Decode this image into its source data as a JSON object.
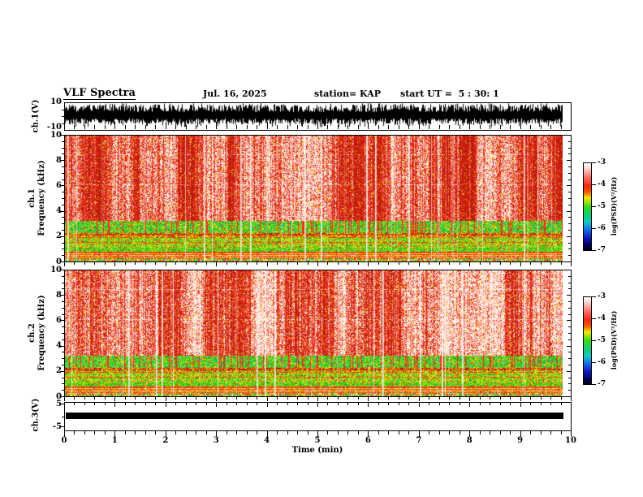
{
  "header": {
    "title": "VLF Spectra",
    "date": "Jul. 16, 2025",
    "station": "station= KAP",
    "start_ut": "start UT =  5 : 30: 1"
  },
  "xaxis": {
    "label": "Time (min)",
    "tick_labels": [
      "0",
      "1",
      "2",
      "3",
      "4",
      "5",
      "6",
      "7",
      "8",
      "9",
      "10"
    ],
    "range": [
      0,
      10
    ]
  },
  "panels": {
    "wave": {
      "name": "ch.1(V)",
      "ytop": "10",
      "ybottom": "-10"
    },
    "spec1": {
      "channel": "ch.1",
      "ylabel": "Frequency (kHz)",
      "ytick_labels": [
        "10",
        "8",
        "6",
        "4",
        "2",
        "0"
      ]
    },
    "spec2": {
      "channel": "ch.2",
      "ylabel": "Frequency (kHz)",
      "ytick_labels": [
        "10",
        "8",
        "6",
        "4",
        "2",
        "0"
      ]
    },
    "ch3": {
      "name": "ch.3(V)",
      "ytop": "5",
      "ybottom": "-5"
    }
  },
  "colorbar": {
    "label": "log(PSD)(V²/Hz)",
    "tick_labels": [
      "-3",
      "-4",
      "-5",
      "-6",
      "-7"
    ],
    "range": [
      -7,
      -3
    ],
    "gradient": [
      [
        0,
        "#ffffff"
      ],
      [
        0.06,
        "#ffd2d2"
      ],
      [
        0.16,
        "#ff7468"
      ],
      [
        0.26,
        "#f62818"
      ],
      [
        0.33,
        "#f05800"
      ],
      [
        0.4,
        "#f0e600"
      ],
      [
        0.5,
        "#3cd81c"
      ],
      [
        0.6,
        "#14cc78"
      ],
      [
        0.68,
        "#16c8c0"
      ],
      [
        0.76,
        "#1670e8"
      ],
      [
        0.86,
        "#1018b4"
      ],
      [
        0.94,
        "#000060"
      ],
      [
        1,
        "#000010"
      ]
    ]
  },
  "spectrogram_palette": {
    "dark_red": "#b91a0c",
    "red": "#f23019",
    "orange": "#f08c00",
    "yellow": "#f0e600",
    "yellow_green": "#a8dc1e",
    "green": "#2cc81e",
    "cyan": "#14c8a0",
    "white_hot": "#ffefe8",
    "pale": "#faf8d8",
    "trace": "#000000"
  },
  "chart_data": [
    {
      "type": "line",
      "panel": "ch.1(V) waveform",
      "xlabel": "Time (min)",
      "xlim": [
        0,
        10
      ],
      "ylabel": "ch.1(V)",
      "ylim": [
        -10,
        10
      ],
      "yticks": [
        10,
        -10
      ],
      "description": "Dense black broadband noise waveform spanning roughly -8 to +10 V continuously for the full 10 minutes"
    },
    {
      "type": "heatmap",
      "panel": "ch.1 spectrogram",
      "xlabel": "Time (min)",
      "xlim": [
        0,
        10
      ],
      "ylabel": "Frequency (kHz)",
      "ylim": [
        0,
        10
      ],
      "yticks": [
        0,
        2,
        4,
        6,
        8,
        10
      ],
      "colorbar_label": "log(PSD)(V²/Hz)",
      "colorbar_range": [
        -7,
        -3
      ],
      "description": "High PSD (red, ~ -3.5 to -4) above ~3 kHz with fine vertical striations and bright white streaks; speckled green band (~ -5) at 2.3-3.2 kHz; green/yellow layered band 1-2 kHz; thin red horizontal lines near 2.2, 1.9, 1.5 kHz; yellow/white/red horizontal stripes below 0.8 kHz; data ends near 9.85 min"
    },
    {
      "type": "heatmap",
      "panel": "ch.2 spectrogram",
      "xlabel": "Time (min)",
      "xlim": [
        0,
        10
      ],
      "ylabel": "Frequency (kHz)",
      "ylim": [
        0,
        10
      ],
      "yticks": [
        0,
        2,
        4,
        6,
        8,
        10
      ],
      "colorbar_label": "log(PSD)(V²/Hz)",
      "colorbar_range": [
        -7,
        -3
      ],
      "description": "Same banded structure as ch.1 but noticeably brighter/whiter (higher PSD) above ~4 kHz"
    },
    {
      "type": "line",
      "panel": "ch.3(V)",
      "xlabel": "Time (min)",
      "xlim": [
        0,
        10
      ],
      "ylabel": "ch.3(V)",
      "ylim": [
        -5,
        5
      ],
      "yticks": [
        5,
        -5
      ],
      "description": "Constant thick flat trace at ~0 V (±1) from 0 to ~9.85 min"
    }
  ]
}
